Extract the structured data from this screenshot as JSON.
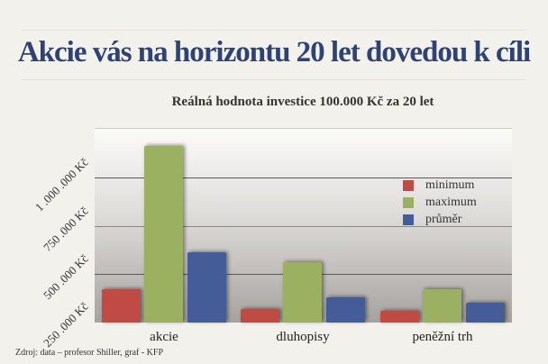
{
  "slide": {
    "title": "Akcie  vás na horizontu 20 let dovedou k cíli",
    "source": "Zdroj: data – profesor Shiller, graf - KFP"
  },
  "colors": {
    "minimum": "#c04b44",
    "maximum": "#9bb060",
    "prumer": "#445c98",
    "title": "#2e4374"
  },
  "chart_data": {
    "type": "bar",
    "title": "Reálná hodnota investice 100.000 Kč za 20 let",
    "xlabel": "",
    "ylabel": "",
    "categories": [
      "akcie",
      "dluhopisy",
      "peněžní trh"
    ],
    "series": [
      {
        "name": "minimum",
        "values": [
          173000,
          70000,
          61000
        ]
      },
      {
        "name": "maximum",
        "values": [
          911000,
          313000,
          173000
        ]
      },
      {
        "name": "průměr",
        "values": [
          364000,
          131000,
          103000
        ]
      }
    ],
    "yticks": [
      "250.000 Kč",
      "500.000 Kč",
      "750.000 Kč",
      "1.000.000 Kč"
    ],
    "ytick_labels_display": [
      "250 .000 Kč",
      "500 .000 Kč",
      "750 .000 Kč",
      "1 .000 .000 Kč"
    ],
    "ylim": [
      0,
      1000000
    ],
    "grid": true,
    "legend_position": "right-inside"
  }
}
